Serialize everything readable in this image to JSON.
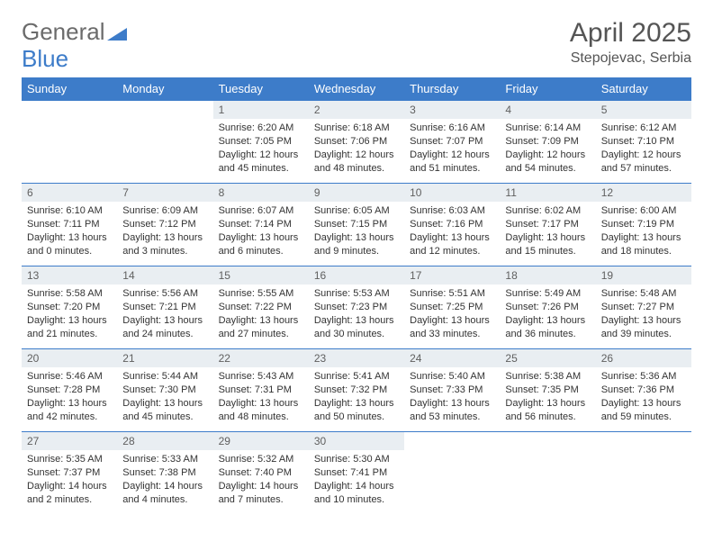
{
  "logo": {
    "part1": "General",
    "part2": "Blue"
  },
  "title": "April 2025",
  "location": "Stepojevac, Serbia",
  "colors": {
    "header_bg": "#3d7cc9",
    "header_text": "#ffffff",
    "daynum_bg": "#e9eef2",
    "border": "#3d7cc9",
    "body_text": "#333333",
    "title_text": "#555555"
  },
  "weekdays": [
    "Sunday",
    "Monday",
    "Tuesday",
    "Wednesday",
    "Thursday",
    "Friday",
    "Saturday"
  ],
  "weeks": [
    [
      null,
      null,
      {
        "n": "1",
        "sr": "6:20 AM",
        "ss": "7:05 PM",
        "dl": "12 hours and 45 minutes."
      },
      {
        "n": "2",
        "sr": "6:18 AM",
        "ss": "7:06 PM",
        "dl": "12 hours and 48 minutes."
      },
      {
        "n": "3",
        "sr": "6:16 AM",
        "ss": "7:07 PM",
        "dl": "12 hours and 51 minutes."
      },
      {
        "n": "4",
        "sr": "6:14 AM",
        "ss": "7:09 PM",
        "dl": "12 hours and 54 minutes."
      },
      {
        "n": "5",
        "sr": "6:12 AM",
        "ss": "7:10 PM",
        "dl": "12 hours and 57 minutes."
      }
    ],
    [
      {
        "n": "6",
        "sr": "6:10 AM",
        "ss": "7:11 PM",
        "dl": "13 hours and 0 minutes."
      },
      {
        "n": "7",
        "sr": "6:09 AM",
        "ss": "7:12 PM",
        "dl": "13 hours and 3 minutes."
      },
      {
        "n": "8",
        "sr": "6:07 AM",
        "ss": "7:14 PM",
        "dl": "13 hours and 6 minutes."
      },
      {
        "n": "9",
        "sr": "6:05 AM",
        "ss": "7:15 PM",
        "dl": "13 hours and 9 minutes."
      },
      {
        "n": "10",
        "sr": "6:03 AM",
        "ss": "7:16 PM",
        "dl": "13 hours and 12 minutes."
      },
      {
        "n": "11",
        "sr": "6:02 AM",
        "ss": "7:17 PM",
        "dl": "13 hours and 15 minutes."
      },
      {
        "n": "12",
        "sr": "6:00 AM",
        "ss": "7:19 PM",
        "dl": "13 hours and 18 minutes."
      }
    ],
    [
      {
        "n": "13",
        "sr": "5:58 AM",
        "ss": "7:20 PM",
        "dl": "13 hours and 21 minutes."
      },
      {
        "n": "14",
        "sr": "5:56 AM",
        "ss": "7:21 PM",
        "dl": "13 hours and 24 minutes."
      },
      {
        "n": "15",
        "sr": "5:55 AM",
        "ss": "7:22 PM",
        "dl": "13 hours and 27 minutes."
      },
      {
        "n": "16",
        "sr": "5:53 AM",
        "ss": "7:23 PM",
        "dl": "13 hours and 30 minutes."
      },
      {
        "n": "17",
        "sr": "5:51 AM",
        "ss": "7:25 PM",
        "dl": "13 hours and 33 minutes."
      },
      {
        "n": "18",
        "sr": "5:49 AM",
        "ss": "7:26 PM",
        "dl": "13 hours and 36 minutes."
      },
      {
        "n": "19",
        "sr": "5:48 AM",
        "ss": "7:27 PM",
        "dl": "13 hours and 39 minutes."
      }
    ],
    [
      {
        "n": "20",
        "sr": "5:46 AM",
        "ss": "7:28 PM",
        "dl": "13 hours and 42 minutes."
      },
      {
        "n": "21",
        "sr": "5:44 AM",
        "ss": "7:30 PM",
        "dl": "13 hours and 45 minutes."
      },
      {
        "n": "22",
        "sr": "5:43 AM",
        "ss": "7:31 PM",
        "dl": "13 hours and 48 minutes."
      },
      {
        "n": "23",
        "sr": "5:41 AM",
        "ss": "7:32 PM",
        "dl": "13 hours and 50 minutes."
      },
      {
        "n": "24",
        "sr": "5:40 AM",
        "ss": "7:33 PM",
        "dl": "13 hours and 53 minutes."
      },
      {
        "n": "25",
        "sr": "5:38 AM",
        "ss": "7:35 PM",
        "dl": "13 hours and 56 minutes."
      },
      {
        "n": "26",
        "sr": "5:36 AM",
        "ss": "7:36 PM",
        "dl": "13 hours and 59 minutes."
      }
    ],
    [
      {
        "n": "27",
        "sr": "5:35 AM",
        "ss": "7:37 PM",
        "dl": "14 hours and 2 minutes."
      },
      {
        "n": "28",
        "sr": "5:33 AM",
        "ss": "7:38 PM",
        "dl": "14 hours and 4 minutes."
      },
      {
        "n": "29",
        "sr": "5:32 AM",
        "ss": "7:40 PM",
        "dl": "14 hours and 7 minutes."
      },
      {
        "n": "30",
        "sr": "5:30 AM",
        "ss": "7:41 PM",
        "dl": "14 hours and 10 minutes."
      },
      null,
      null,
      null
    ]
  ],
  "labels": {
    "sunrise": "Sunrise: ",
    "sunset": "Sunset: ",
    "daylight": "Daylight: "
  }
}
